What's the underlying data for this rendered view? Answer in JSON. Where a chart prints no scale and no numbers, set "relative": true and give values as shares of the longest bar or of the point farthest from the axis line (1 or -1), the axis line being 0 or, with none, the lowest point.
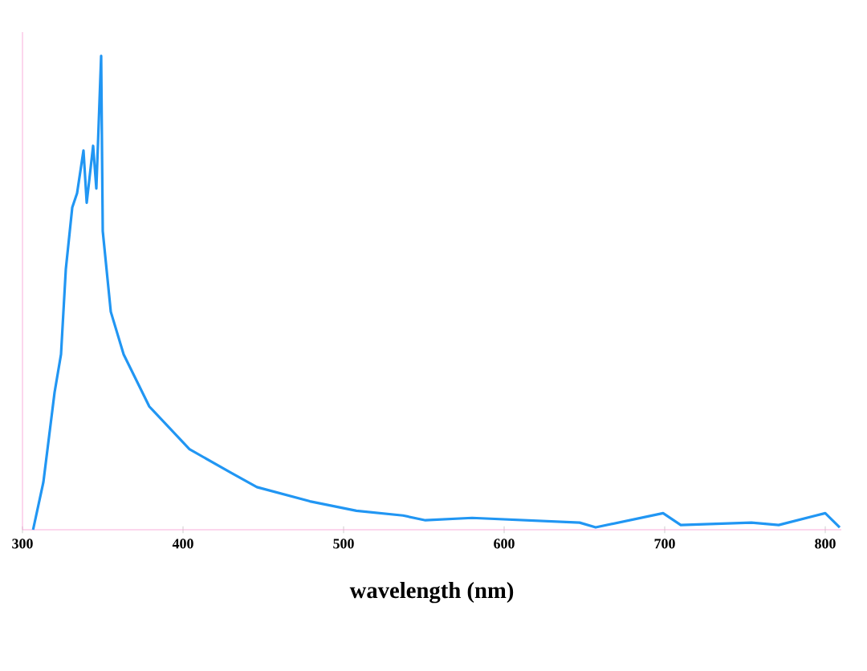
{
  "chart_data": {
    "type": "line",
    "xlabel": "wavelength (nm)",
    "relative": true,
    "xlim": [
      300,
      810
    ],
    "xticks": [
      300,
      400,
      500,
      600,
      700,
      800
    ],
    "color": "#2196f3",
    "x": [
      306.6,
      313,
      320,
      324,
      327,
      331,
      334,
      338,
      340,
      344,
      346,
      349,
      350,
      355,
      363,
      379,
      404,
      430,
      446,
      479,
      508,
      537,
      551,
      580,
      647,
      657,
      699,
      710,
      754,
      771,
      800,
      809
    ],
    "values": [
      0,
      0.1,
      0.29,
      0.37,
      0.55,
      0.68,
      0.71,
      0.8,
      0.69,
      0.81,
      0.72,
      1.0,
      0.63,
      0.46,
      0.37,
      0.26,
      0.17,
      0.12,
      0.09,
      0.06,
      0.04,
      0.03,
      0.02,
      0.025,
      0.015,
      0.005,
      0.035,
      0.01,
      0.015,
      0.01,
      0.035,
      0.005
    ]
  }
}
